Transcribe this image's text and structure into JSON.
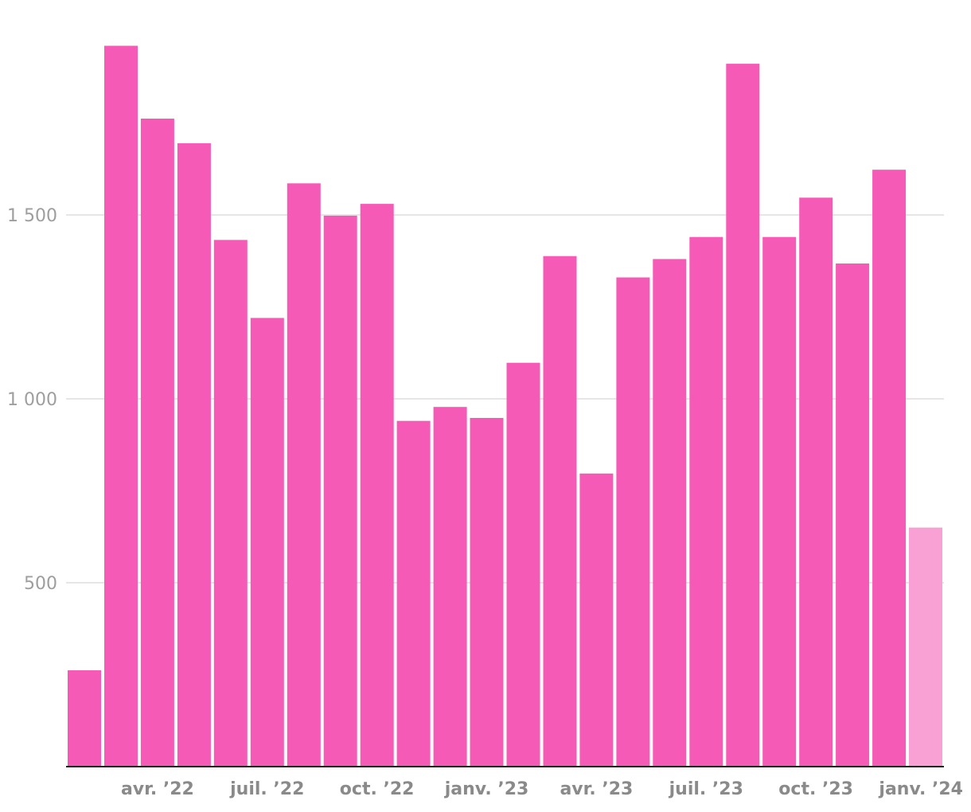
{
  "chart_data": {
    "type": "bar",
    "categories": [
      "2022-02",
      "2022-03",
      "2022-04",
      "2022-05",
      "2022-06",
      "2022-07",
      "2022-08",
      "2022-09",
      "2022-10",
      "2022-11",
      "2022-12",
      "2023-01",
      "2023-02",
      "2023-03",
      "2023-04",
      "2023-05",
      "2023-06",
      "2023-07",
      "2023-08",
      "2023-09",
      "2023-10",
      "2023-11",
      "2023-12",
      "2024-01"
    ],
    "values": [
      262,
      1960,
      1762,
      1695,
      1432,
      1220,
      1586,
      1498,
      1530,
      940,
      978,
      948,
      1098,
      1388,
      797,
      1330,
      1380,
      1440,
      1911,
      1440,
      1547,
      1368,
      1623,
      650
    ],
    "partial_last": true,
    "ylim": [
      0,
      2050
    ],
    "y_ticks": [
      {
        "value": 500,
        "label": "500"
      },
      {
        "value": 1000,
        "label": "1 000"
      },
      {
        "value": 1500,
        "label": "1 500"
      }
    ],
    "x_ticks": [
      {
        "index": 2,
        "label": "avr. ’22"
      },
      {
        "index": 5,
        "label": "juil. ’22"
      },
      {
        "index": 8,
        "label": "oct. ’22"
      },
      {
        "index": 11,
        "label": "janv. ’23"
      },
      {
        "index": 14,
        "label": "avr. ’23"
      },
      {
        "index": 17,
        "label": "juil. ’23"
      },
      {
        "index": 20,
        "label": "oct. ’23"
      },
      {
        "index": 23,
        "label": "janv. ’24"
      }
    ],
    "grid": true,
    "colors": {
      "bar": "#f55ab6",
      "bar_partial": "#f9a0d4"
    }
  }
}
